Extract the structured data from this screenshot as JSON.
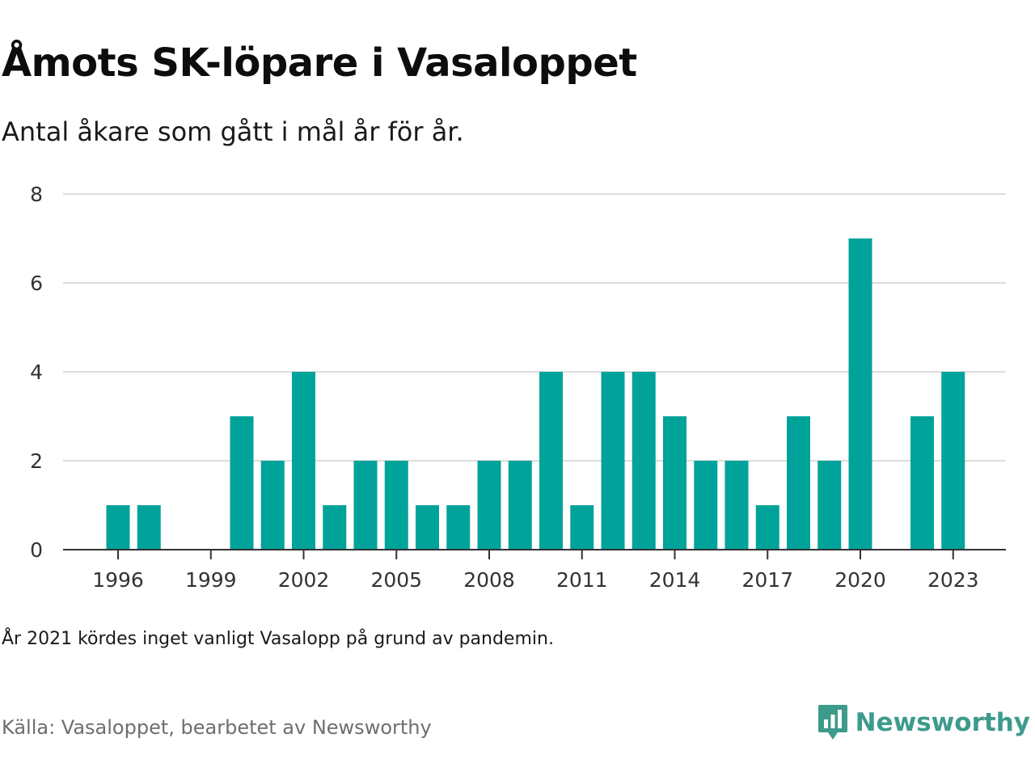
{
  "title": "Åmots SK-löpare i Vasaloppet",
  "subtitle": "Antal åkare som gått i mål år för år.",
  "note": "År 2021 kördes inget vanligt Vasalopp på grund av pandemin.",
  "source": "Källa: Vasaloppet, bearbetet av Newsworthy",
  "brand": {
    "name": "Newsworthy",
    "logo_icon": "newsworthy-chat-bar-icon",
    "color": "#3d9b8c"
  },
  "colors": {
    "bar": "#00a39a",
    "grid": "#dddddd",
    "axis": "#333333"
  },
  "chart_data": {
    "type": "bar",
    "title": "Åmots SK-löpare i Vasaloppet",
    "subtitle": "Antal åkare som gått i mål år för år.",
    "xlabel": "",
    "ylabel": "",
    "x": [
      1996,
      1997,
      1998,
      1999,
      2000,
      2001,
      2002,
      2003,
      2004,
      2005,
      2006,
      2007,
      2008,
      2009,
      2010,
      2011,
      2012,
      2013,
      2014,
      2015,
      2016,
      2017,
      2018,
      2019,
      2020,
      2021,
      2022,
      2023
    ],
    "values": [
      1,
      1,
      0,
      0,
      3,
      2,
      4,
      1,
      2,
      2,
      1,
      1,
      2,
      2,
      4,
      1,
      4,
      4,
      3,
      2,
      2,
      1,
      3,
      2,
      7,
      0,
      3,
      4
    ],
    "ylim": [
      0,
      8
    ],
    "y_ticks": [
      "0",
      "2",
      "4",
      "6",
      "8"
    ],
    "x_ticks": [
      "1996",
      "1999",
      "2002",
      "2005",
      "2008",
      "2011",
      "2014",
      "2017",
      "2020",
      "2023"
    ],
    "grid": true,
    "legend": "none"
  }
}
